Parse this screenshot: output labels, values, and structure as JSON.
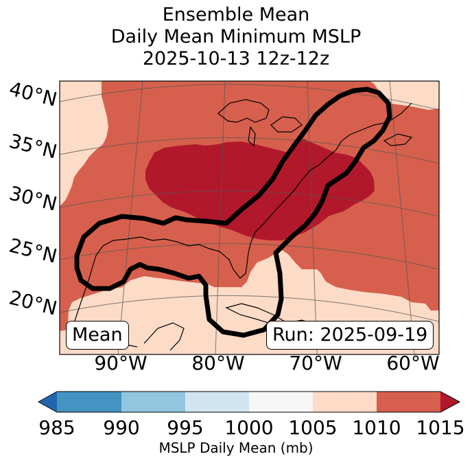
{
  "title": {
    "line1": "Ensemble Mean",
    "line2": "Daily Mean Minimum MSLP",
    "line3": "2025-10-13 12z-12z"
  },
  "map": {
    "lat_labels": [
      "40°N",
      "35°N",
      "30°N",
      "25°N",
      "20°N"
    ],
    "lon_labels": [
      "90°W",
      "80°W",
      "70°W",
      "60°W"
    ],
    "mean_label": "Mean",
    "run_label": "Run: 2025-09-19",
    "colors": {
      "lt_1010": "#fcdbc7",
      "r1010_1015": "#d6604d",
      "gt_1015": "#b2182b"
    }
  },
  "colorbar": {
    "ticks": [
      "985",
      "990",
      "995",
      "1000",
      "1005",
      "1010",
      "1015"
    ],
    "label": "MSLP Daily Mean (mb)",
    "colors": {
      "under": "#2166ac",
      "b985_990": "#4393c3",
      "b990_995": "#92c5de",
      "b995_1000": "#d1e5f0",
      "b1000_1005": "#f7f7f7",
      "b1005_1010": "#fddbc7",
      "b1010_1015": "#d6604d",
      "over": "#b2182b"
    }
  }
}
